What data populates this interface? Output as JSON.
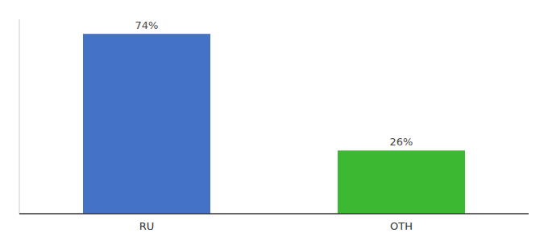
{
  "chart_data": {
    "type": "bar",
    "categories": [
      "RU",
      "OTH"
    ],
    "values": [
      74,
      26
    ],
    "value_labels": [
      "74%",
      "26%"
    ],
    "colors": [
      "#4472C4",
      "#3CB832"
    ],
    "ylim": [
      0,
      80
    ],
    "data_labels": true,
    "tick_labels": "x",
    "grid": false
  }
}
